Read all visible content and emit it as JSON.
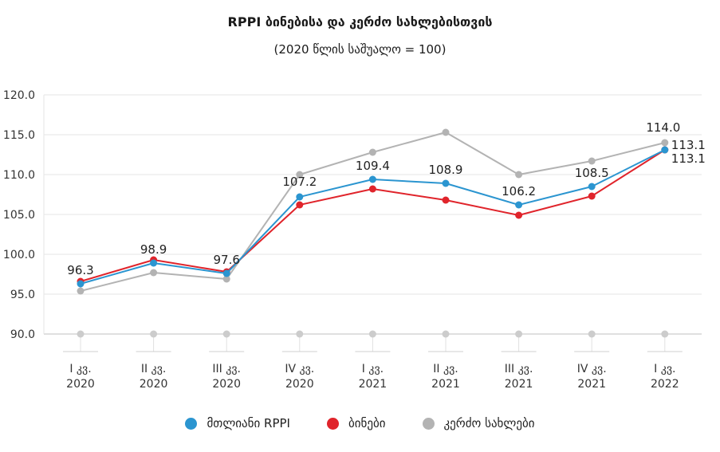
{
  "title": "RPPI ბინებისა და კერძო სახლებისთვის",
  "subtitle": "(2020 წლის საშუალო = 100)",
  "chart_data": {
    "type": "line",
    "categories": [
      [
        "I კვ.",
        "2020"
      ],
      [
        "II კვ.",
        "2020"
      ],
      [
        "III კვ.",
        "2020"
      ],
      [
        "IV კვ.",
        "2020"
      ],
      [
        "I კვ.",
        "2021"
      ],
      [
        "II კვ.",
        "2021"
      ],
      [
        "III კვ.",
        "2021"
      ],
      [
        "IV კვ.",
        "2021"
      ],
      [
        "I კვ.",
        "2022"
      ]
    ],
    "ylim": [
      90,
      120
    ],
    "yticks": [
      "90.0",
      "95.0",
      "100.0",
      "105.0",
      "110.0",
      "115.0",
      "120.0"
    ],
    "grid": true,
    "legend_position": "bottom",
    "series": [
      {
        "name": "მთლიანი RPPI",
        "color": "#2b95d0",
        "values": [
          96.3,
          98.9,
          97.6,
          107.2,
          109.4,
          108.9,
          106.2,
          108.5,
          113.1
        ],
        "labels": [
          "96.3",
          "98.9",
          "97.6",
          "107.2",
          "109.4",
          "108.9",
          "106.2",
          "108.5",
          "113.1"
        ]
      },
      {
        "name": "ბინები",
        "color": "#e0242b",
        "values": [
          96.6,
          99.3,
          97.8,
          106.2,
          108.2,
          106.8,
          104.9,
          107.3,
          113.1
        ],
        "labels": []
      },
      {
        "name": "კერძო სახლები",
        "color": "#b3b3b3",
        "values": [
          95.4,
          97.7,
          96.9,
          110.0,
          112.8,
          115.3,
          110.0,
          111.7,
          114.0
        ],
        "labels": [
          "",
          "",
          "",
          "",
          "",
          "",
          "",
          "",
          "114.0"
        ]
      }
    ]
  }
}
